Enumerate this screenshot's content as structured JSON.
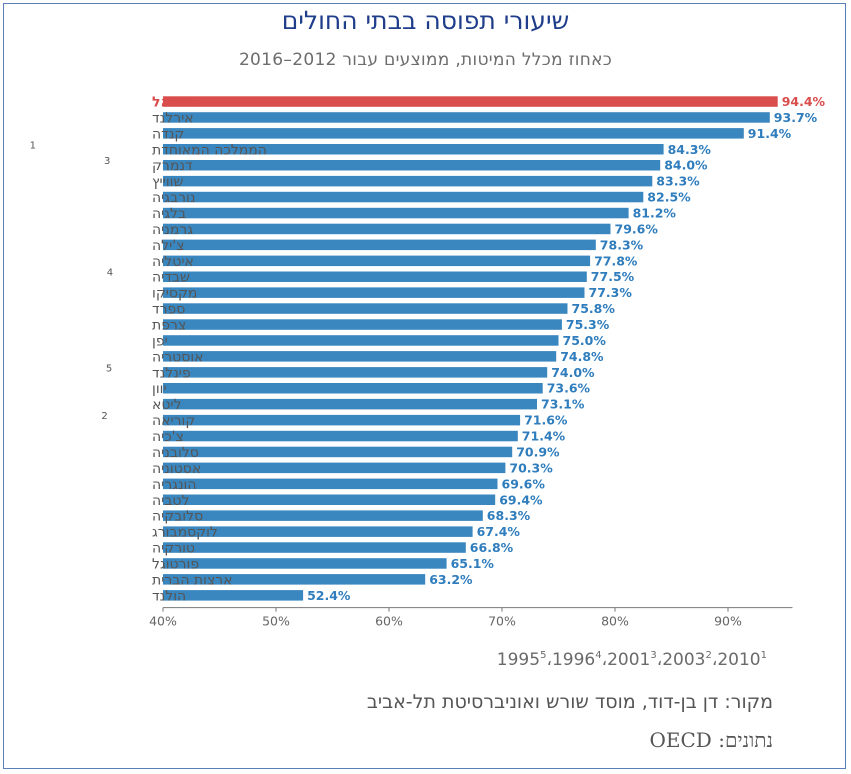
{
  "title": "שיעורי תפוסה בבתי החולים",
  "subtitle": "כאחוז מכלל המיטות, ממוצעים עבור 2012–2016",
  "footnotes": {
    "items": [
      {
        "year": "1995",
        "mark": "5"
      },
      {
        "year": "1996",
        "mark": "4"
      },
      {
        "year": "2001",
        "mark": "3"
      },
      {
        "year": "2003",
        "mark": "2"
      },
      {
        "year": "2010",
        "mark": "1"
      }
    ],
    "separator": "،"
  },
  "source": "מקור:  דן בן-דוד, מוסד שורש ואוניברסיטת תל-אביב",
  "data_source": "נתונים: OECD",
  "colors": {
    "highlight": "#d94d4d",
    "bar": "#3a87c0",
    "value_label": "#2f7dbd",
    "country_label": "#555555",
    "title": "#1f3d8a"
  },
  "chart_data": {
    "type": "bar",
    "orientation": "horizontal",
    "title": "שיעורי תפוסה בבתי החולים",
    "subtitle": "כאחוז מכלל המיטות, ממוצעים עבור 2012–2016",
    "categories": [
      "ישראל",
      "אירלנד",
      "קנדה",
      "הממלכה המאוחדת",
      "דנמרק",
      "שווייץ",
      "נורבגיה",
      "בלגיה",
      "גרמניה",
      "צ'ילה",
      "איטליה",
      "שבדיה",
      "מקסיקו",
      "ספרד",
      "צרפת",
      "יפן",
      "אוסטריה",
      "פינלנד",
      "יוון",
      "ליטא",
      "קוריאה",
      "צ'כיה",
      "סלובניה",
      "אסטוניה",
      "הונגריה",
      "לטביה",
      "סלובקיה",
      "לוקסמבורג",
      "טורקיה",
      "פורטוגל",
      "ארצות הברית",
      "הולנד"
    ],
    "category_footnotes": [
      "",
      "",
      "",
      "1",
      "3",
      "",
      "",
      "",
      "",
      "",
      "",
      "4",
      "",
      "",
      "",
      "",
      "",
      "5",
      "",
      "",
      "2",
      "",
      "",
      "",
      "",
      "",
      "",
      "",
      "",
      "",
      "",
      ""
    ],
    "values": [
      94.4,
      93.7,
      91.4,
      84.3,
      84.0,
      83.3,
      82.5,
      81.2,
      79.6,
      78.3,
      77.8,
      77.5,
      77.3,
      75.8,
      75.3,
      75.0,
      74.8,
      74.0,
      73.6,
      73.1,
      71.6,
      71.4,
      70.9,
      70.3,
      69.6,
      69.4,
      68.3,
      67.4,
      66.8,
      65.1,
      63.2,
      52.4
    ],
    "value_labels": [
      "94.4%",
      "93.7%",
      "91.4%",
      "84.3%",
      "84.0%",
      "83.3%",
      "82.5%",
      "81.2%",
      "79.6%",
      "78.3%",
      "77.8%",
      "77.5%",
      "77.3%",
      "75.8%",
      "75.3%",
      "75.0%",
      "74.8%",
      "74.0%",
      "73.6%",
      "73.1%",
      "71.6%",
      "71.4%",
      "70.9%",
      "70.3%",
      "69.6%",
      "69.4%",
      "68.3%",
      "67.4%",
      "66.8%",
      "65.1%",
      "63.2%",
      "52.4%"
    ],
    "highlight_index": 0,
    "xlim": [
      40,
      95
    ],
    "x_ticks": [
      40,
      50,
      60,
      70,
      80,
      90
    ],
    "x_tick_labels": [
      "40%",
      "50%",
      "60%",
      "70%",
      "80%",
      "90%"
    ],
    "grid": false
  }
}
